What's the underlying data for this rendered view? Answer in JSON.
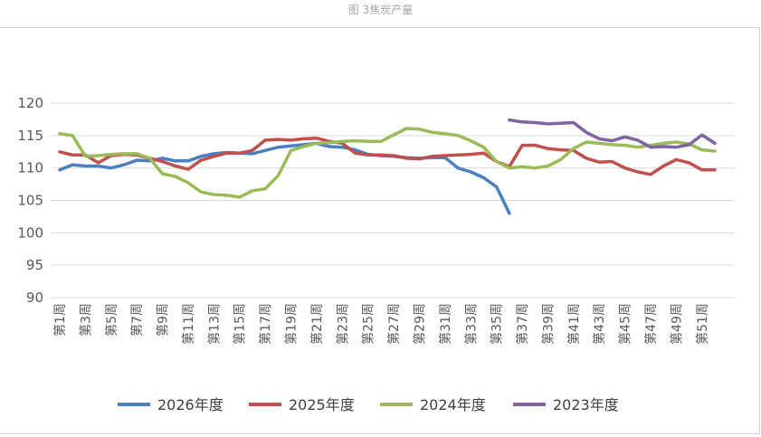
{
  "caption": "图 3焦炭产量",
  "colors": {
    "2026": "#4a7fc1",
    "2025": "#c0504d",
    "2024": "#9bbb59",
    "2023": "#8064a2",
    "grid": "#d9d9d9",
    "axis_text": "#595959"
  },
  "chart_data": {
    "type": "line",
    "title": "",
    "xlabel": "",
    "ylabel": "",
    "ylim": [
      90,
      120
    ],
    "yticks": [
      90,
      95,
      100,
      105,
      110,
      115,
      120
    ],
    "grid": "horizontal",
    "legend_position": "bottom",
    "x_weeks": [
      1,
      2,
      3,
      4,
      5,
      6,
      7,
      8,
      9,
      10,
      11,
      12,
      13,
      14,
      15,
      16,
      17,
      18,
      19,
      20,
      21,
      22,
      23,
      24,
      25,
      26,
      27,
      28,
      29,
      30,
      31,
      32,
      33,
      34,
      35,
      36,
      37,
      38,
      39,
      40,
      41,
      42,
      43,
      44,
      45,
      46,
      47,
      48,
      49,
      50,
      51,
      52
    ],
    "x_tick_labels": [
      "第1周",
      "第3周",
      "第5周",
      "第7周",
      "第9周",
      "第11周",
      "第13周",
      "第15周",
      "第17周",
      "第19周",
      "第21周",
      "第23周",
      "第25周",
      "第27周",
      "第29周",
      "第31周",
      "第33周",
      "第35周",
      "第37周",
      "第39周",
      "第41周",
      "第43周",
      "第45周",
      "第47周",
      "第49周",
      "第51周"
    ],
    "series": [
      {
        "name": "2026年度",
        "color_key": "2026",
        "values": [
          109.7,
          110.5,
          110.3,
          110.3,
          110.0,
          110.5,
          111.2,
          111.1,
          111.5,
          111.1,
          111.1,
          111.8,
          112.2,
          112.4,
          112.3,
          112.2,
          112.7,
          113.2,
          113.4,
          113.6,
          113.8,
          113.3,
          113.2,
          112.8,
          112.1,
          111.9,
          111.8,
          111.6,
          111.5,
          111.6,
          111.6,
          110.0,
          109.4,
          108.5,
          107.1,
          103.0,
          null,
          null,
          null,
          null,
          null,
          null,
          null,
          null,
          null,
          null,
          null,
          null,
          null,
          null,
          null,
          null
        ]
      },
      {
        "name": "2025年度",
        "color_key": "2025",
        "values": [
          112.5,
          112.0,
          112.0,
          110.8,
          111.9,
          112.1,
          112.0,
          111.5,
          111.0,
          110.3,
          109.8,
          111.2,
          111.8,
          112.3,
          112.3,
          112.7,
          114.3,
          114.4,
          114.3,
          114.5,
          114.6,
          114.1,
          113.8,
          112.3,
          112.0,
          112.0,
          111.9,
          111.5,
          111.4,
          111.8,
          111.9,
          112.0,
          112.1,
          112.3,
          111.0,
          110.2,
          113.5,
          113.5,
          113.0,
          112.8,
          112.7,
          111.5,
          110.9,
          111.0,
          110.0,
          109.4,
          109.0,
          110.3,
          111.3,
          110.8,
          109.7,
          109.7
        ]
      },
      {
        "name": "2024年度",
        "color_key": "2024",
        "values": [
          115.3,
          115.0,
          111.8,
          111.9,
          112.1,
          112.2,
          112.2,
          111.5,
          109.1,
          108.7,
          107.7,
          106.3,
          105.9,
          105.8,
          105.5,
          106.5,
          106.8,
          108.8,
          112.7,
          113.3,
          113.8,
          113.9,
          114.1,
          114.2,
          114.1,
          114.1,
          115.1,
          116.1,
          116.0,
          115.5,
          115.3,
          115.0,
          114.2,
          113.2,
          111.0,
          110.0,
          110.2,
          110.0,
          110.3,
          111.3,
          113.0,
          114.0,
          113.8,
          113.6,
          113.5,
          113.2,
          113.5,
          113.8,
          114.0,
          113.7,
          112.8,
          112.6
        ]
      },
      {
        "name": "2023年度",
        "color_key": "2023",
        "values": [
          null,
          null,
          null,
          null,
          null,
          null,
          null,
          null,
          null,
          null,
          null,
          null,
          null,
          null,
          null,
          null,
          null,
          null,
          null,
          null,
          null,
          null,
          null,
          null,
          null,
          null,
          null,
          null,
          null,
          null,
          null,
          null,
          null,
          null,
          null,
          117.4,
          117.1,
          117.0,
          116.8,
          116.9,
          117.0,
          115.5,
          114.5,
          114.2,
          114.8,
          114.3,
          113.2,
          113.3,
          113.2,
          113.6,
          115.1,
          113.8
        ]
      }
    ]
  }
}
